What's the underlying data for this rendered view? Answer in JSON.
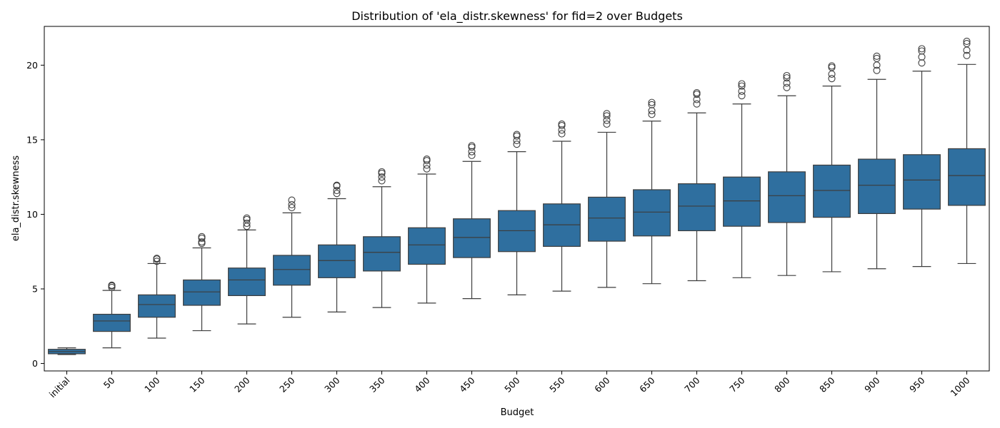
{
  "chart_data": {
    "type": "box",
    "title": "Distribution of 'ela_distr.skewness' for fid=2 over Budgets",
    "xlabel": "Budget",
    "ylabel": "ela_distr.skewness",
    "ylim": [
      -0.5,
      22.6
    ],
    "yticks": [
      0,
      5,
      10,
      15,
      20
    ],
    "grid": false,
    "box_color": "#2f6f9f",
    "line_color": "#3d3d3d",
    "categories": [
      "initial",
      "50",
      "100",
      "150",
      "200",
      "250",
      "300",
      "350",
      "400",
      "450",
      "500",
      "550",
      "600",
      "650",
      "700",
      "750",
      "800",
      "850",
      "900",
      "950",
      "1000"
    ],
    "boxes": [
      {
        "whisker_low": 0.6,
        "q1": 0.65,
        "median": 0.8,
        "q3": 0.95,
        "whisker_high": 1.05,
        "outliers": []
      },
      {
        "whisker_low": 1.05,
        "q1": 2.15,
        "median": 2.85,
        "q3": 3.3,
        "whisker_high": 4.9,
        "outliers": [
          5.1,
          5.2,
          5.25
        ]
      },
      {
        "whisker_low": 1.7,
        "q1": 3.1,
        "median": 3.95,
        "q3": 4.6,
        "whisker_high": 6.7,
        "outliers": [
          6.85,
          7.0,
          7.05
        ]
      },
      {
        "whisker_low": 2.2,
        "q1": 3.9,
        "median": 4.8,
        "q3": 5.6,
        "whisker_high": 7.75,
        "outliers": [
          8.05,
          8.15,
          8.4,
          8.5
        ]
      },
      {
        "whisker_low": 2.65,
        "q1": 4.55,
        "median": 5.6,
        "q3": 6.4,
        "whisker_high": 8.95,
        "outliers": [
          9.2,
          9.4,
          9.65,
          9.75
        ]
      },
      {
        "whisker_low": 3.1,
        "q1": 5.25,
        "median": 6.3,
        "q3": 7.25,
        "whisker_high": 10.1,
        "outliers": [
          10.45,
          10.65,
          10.95
        ]
      },
      {
        "whisker_low": 3.45,
        "q1": 5.75,
        "median": 6.9,
        "q3": 7.95,
        "whisker_high": 11.05,
        "outliers": [
          11.4,
          11.6,
          11.9,
          11.95
        ]
      },
      {
        "whisker_low": 3.75,
        "q1": 6.2,
        "median": 7.45,
        "q3": 8.5,
        "whisker_high": 11.85,
        "outliers": [
          12.25,
          12.5,
          12.75,
          12.85
        ]
      },
      {
        "whisker_low": 4.05,
        "q1": 6.65,
        "median": 7.95,
        "q3": 9.1,
        "whisker_high": 12.7,
        "outliers": [
          13.05,
          13.3,
          13.6,
          13.7
        ]
      },
      {
        "whisker_low": 4.35,
        "q1": 7.1,
        "median": 8.45,
        "q3": 9.7,
        "whisker_high": 13.55,
        "outliers": [
          13.95,
          14.2,
          14.5,
          14.6
        ]
      },
      {
        "whisker_low": 4.6,
        "q1": 7.5,
        "median": 8.9,
        "q3": 10.25,
        "whisker_high": 14.2,
        "outliers": [
          14.7,
          14.95,
          15.25,
          15.35
        ]
      },
      {
        "whisker_low": 4.85,
        "q1": 7.85,
        "median": 9.3,
        "q3": 10.7,
        "whisker_high": 14.9,
        "outliers": [
          15.4,
          15.65,
          15.95,
          16.05
        ]
      },
      {
        "whisker_low": 5.1,
        "q1": 8.2,
        "median": 9.75,
        "q3": 11.15,
        "whisker_high": 15.5,
        "outliers": [
          16.05,
          16.3,
          16.6,
          16.75
        ]
      },
      {
        "whisker_low": 5.35,
        "q1": 8.55,
        "median": 10.15,
        "q3": 11.65,
        "whisker_high": 16.25,
        "outliers": [
          16.7,
          16.95,
          17.35,
          17.5
        ]
      },
      {
        "whisker_low": 5.55,
        "q1": 8.9,
        "median": 10.55,
        "q3": 12.05,
        "whisker_high": 16.8,
        "outliers": [
          17.4,
          17.7,
          18.05,
          18.15
        ]
      },
      {
        "whisker_low": 5.75,
        "q1": 9.2,
        "median": 10.9,
        "q3": 12.5,
        "whisker_high": 17.4,
        "outliers": [
          17.95,
          18.25,
          18.6,
          18.75
        ]
      },
      {
        "whisker_low": 5.9,
        "q1": 9.45,
        "median": 11.25,
        "q3": 12.85,
        "whisker_high": 17.95,
        "outliers": [
          18.5,
          18.8,
          19.15,
          19.3
        ]
      },
      {
        "whisker_low": 6.15,
        "q1": 9.8,
        "median": 11.6,
        "q3": 13.3,
        "whisker_high": 18.6,
        "outliers": [
          19.1,
          19.4,
          19.85,
          19.95
        ]
      },
      {
        "whisker_low": 6.35,
        "q1": 10.05,
        "median": 11.95,
        "q3": 13.7,
        "whisker_high": 19.05,
        "outliers": [
          19.65,
          20.0,
          20.45,
          20.6
        ]
      },
      {
        "whisker_low": 6.5,
        "q1": 10.35,
        "median": 12.3,
        "q3": 14.0,
        "whisker_high": 19.6,
        "outliers": [
          20.15,
          20.55,
          20.95,
          21.1
        ]
      },
      {
        "whisker_low": 6.7,
        "q1": 10.6,
        "median": 12.6,
        "q3": 14.4,
        "whisker_high": 20.05,
        "outliers": [
          20.65,
          21.0,
          21.45,
          21.6
        ]
      }
    ]
  }
}
